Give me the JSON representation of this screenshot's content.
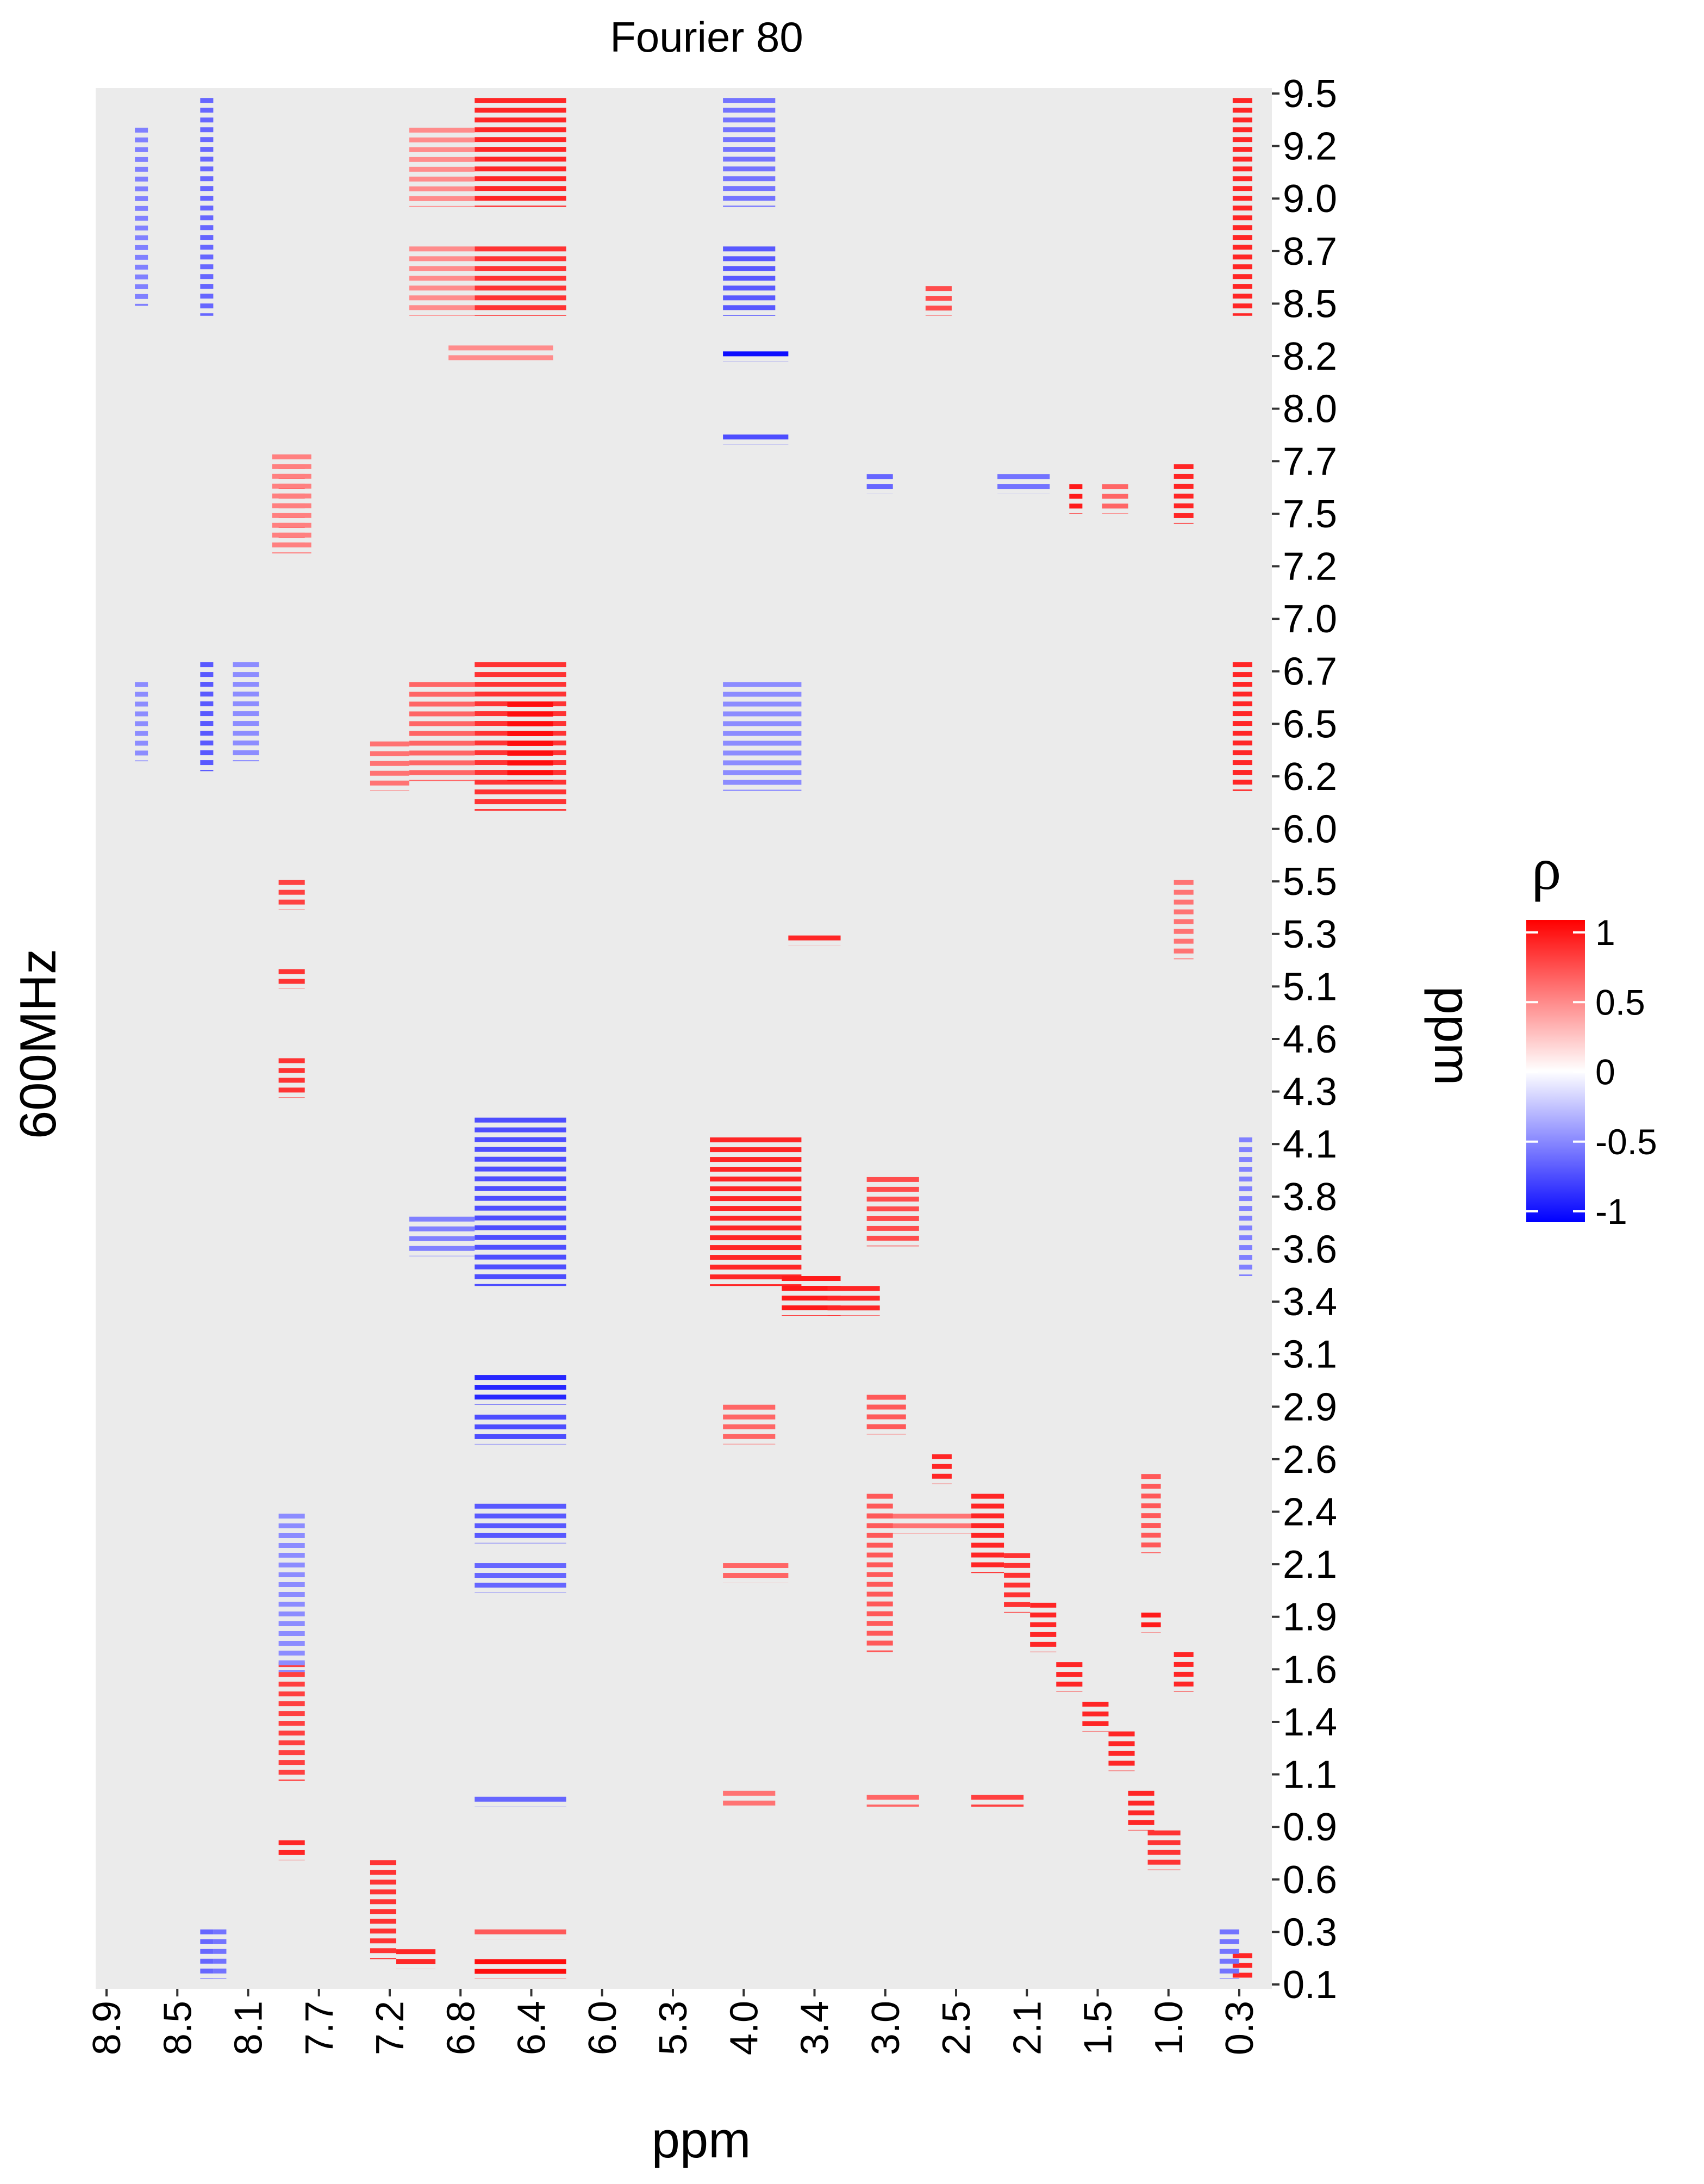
{
  "chart_data": {
    "type": "heatmap",
    "title": "Fourier 80",
    "xlabel": "ppm",
    "ylabel_left": "600MHz",
    "ylabel_right": "ppm",
    "x_ticks": [
      "8.9",
      "8.5",
      "8.1",
      "7.7",
      "7.2",
      "6.8",
      "6.4",
      "6.0",
      "5.3",
      "4.0",
      "3.4",
      "3.0",
      "2.5",
      "2.1",
      "1.5",
      "1.0",
      "0.3"
    ],
    "y_ticks": [
      "9.5",
      "9.2",
      "9.0",
      "8.7",
      "8.5",
      "8.2",
      "8.0",
      "7.7",
      "7.5",
      "7.2",
      "7.0",
      "6.7",
      "6.5",
      "6.2",
      "6.0",
      "5.5",
      "5.3",
      "5.1",
      "4.6",
      "4.3",
      "4.1",
      "3.8",
      "3.6",
      "3.4",
      "3.1",
      "2.9",
      "2.6",
      "2.4",
      "2.1",
      "1.9",
      "1.6",
      "1.4",
      "1.1",
      "0.9",
      "0.6",
      "0.3",
      "0.1"
    ],
    "value_range": [
      -1,
      1
    ],
    "legend": {
      "title": "ρ",
      "position": "right",
      "ticks": [
        "1",
        "0.5",
        "0",
        "-0.5",
        "-1"
      ],
      "tick_values": [
        1,
        0.5,
        0,
        -0.5,
        -1
      ]
    },
    "colors": {
      "positive": "#ff0000",
      "zero": "#ffffff",
      "negative": "#0000ff",
      "background": "#ebebeb"
    },
    "blocks": [
      {
        "x": [
          6.1,
          5.4
        ],
        "y": [
          9.55,
          9.0
        ],
        "value": 0.85
      },
      {
        "x": [
          6.1,
          5.4
        ],
        "y": [
          8.8,
          8.45
        ],
        "value": 0.8
      },
      {
        "x": [
          6.6,
          6.1
        ],
        "y": [
          9.4,
          9.0
        ],
        "value": 0.45
      },
      {
        "x": [
          6.6,
          6.1
        ],
        "y": [
          8.8,
          8.45
        ],
        "value": 0.45
      },
      {
        "x": [
          6.3,
          5.5
        ],
        "y": [
          8.3,
          8.22
        ],
        "value": 0.45
      },
      {
        "x": [
          4.2,
          3.8
        ],
        "y": [
          9.55,
          9.0
        ],
        "value": -0.55
      },
      {
        "x": [
          4.2,
          3.8
        ],
        "y": [
          8.8,
          8.45
        ],
        "value": -0.65
      },
      {
        "x": [
          4.2,
          3.7
        ],
        "y": [
          8.27,
          8.22
        ],
        "value": -0.95
      },
      {
        "x": [
          4.2,
          3.7
        ],
        "y": [
          7.85,
          7.8
        ],
        "value": -0.7
      },
      {
        "x": [
          8.2,
          8.1
        ],
        "y": [
          9.55,
          8.45
        ],
        "value": -0.6
      },
      {
        "x": [
          8.7,
          8.6
        ],
        "y": [
          9.4,
          8.5
        ],
        "value": -0.5
      },
      {
        "x": [
          0.3,
          0.15
        ],
        "y": [
          9.55,
          8.45
        ],
        "value": 0.85
      },
      {
        "x": [
          2.65,
          2.45
        ],
        "y": [
          8.6,
          8.45
        ],
        "value": 0.7
      },
      {
        "x": [
          7.6,
          7.4
        ],
        "y": [
          7.7,
          7.3
        ],
        "value": 0.9
      },
      {
        "x": [
          7.65,
          7.35
        ],
        "y": [
          7.75,
          7.25
        ],
        "value": 0.5
      },
      {
        "x": [
          1.55,
          1.45
        ],
        "y": [
          7.6,
          7.45
        ],
        "value": 0.9
      },
      {
        "x": [
          0.75,
          0.6
        ],
        "y": [
          7.7,
          7.4
        ],
        "value": 0.85
      },
      {
        "x": [
          1.3,
          1.1
        ],
        "y": [
          7.6,
          7.45
        ],
        "value": 0.6
      },
      {
        "x": [
          3.1,
          2.9
        ],
        "y": [
          7.65,
          7.55
        ],
        "value": -0.6
      },
      {
        "x": [
          2.1,
          1.7
        ],
        "y": [
          7.65,
          7.55
        ],
        "value": -0.55
      },
      {
        "x": [
          6.1,
          5.4
        ],
        "y": [
          6.7,
          5.95
        ],
        "value": 0.8
      },
      {
        "x": [
          5.85,
          5.5
        ],
        "y": [
          6.5,
          6.1
        ],
        "value": 0.95
      },
      {
        "x": [
          6.6,
          6.1
        ],
        "y": [
          6.6,
          6.1
        ],
        "value": 0.6
      },
      {
        "x": [
          6.9,
          6.6
        ],
        "y": [
          6.3,
          6.05
        ],
        "value": 0.55
      },
      {
        "x": [
          4.2,
          3.6
        ],
        "y": [
          6.6,
          6.05
        ],
        "value": -0.45
      },
      {
        "x": [
          8.2,
          8.1
        ],
        "y": [
          6.7,
          6.15
        ],
        "value": -0.65
      },
      {
        "x": [
          7.95,
          7.75
        ],
        "y": [
          6.7,
          6.2
        ],
        "value": -0.45
      },
      {
        "x": [
          8.7,
          8.6
        ],
        "y": [
          6.6,
          6.2
        ],
        "value": -0.45
      },
      {
        "x": [
          0.3,
          0.15
        ],
        "y": [
          6.7,
          6.05
        ],
        "value": 0.85
      },
      {
        "x": [
          7.6,
          7.4
        ],
        "y": [
          5.6,
          5.45
        ],
        "value": 0.75
      },
      {
        "x": [
          7.6,
          7.4
        ],
        "y": [
          5.15,
          5.05
        ],
        "value": 0.8
      },
      {
        "x": [
          7.6,
          7.4
        ],
        "y": [
          4.7,
          4.5
        ],
        "value": 0.8
      },
      {
        "x": [
          3.7,
          3.3
        ],
        "y": [
          5.32,
          5.27
        ],
        "value": 0.85
      },
      {
        "x": [
          6.1,
          5.4
        ],
        "y": [
          4.4,
          3.55
        ],
        "value": -0.7
      },
      {
        "x": [
          6.1,
          5.4
        ],
        "y": [
          3.1,
          2.95
        ],
        "value": -0.85
      },
      {
        "x": [
          6.1,
          5.4
        ],
        "y": [
          2.9,
          2.75
        ],
        "value": -0.7
      },
      {
        "x": [
          6.1,
          5.4
        ],
        "y": [
          2.45,
          2.25
        ],
        "value": -0.65
      },
      {
        "x": [
          6.1,
          5.4
        ],
        "y": [
          2.15,
          2.0
        ],
        "value": -0.6
      },
      {
        "x": [
          6.1,
          5.4
        ],
        "y": [
          0.97,
          0.92
        ],
        "value": -0.6
      },
      {
        "x": [
          6.6,
          6.1
        ],
        "y": [
          3.9,
          3.7
        ],
        "value": -0.5
      },
      {
        "x": [
          4.3,
          3.6
        ],
        "y": [
          4.3,
          3.55
        ],
        "value": 0.85
      },
      {
        "x": [
          3.75,
          3.3
        ],
        "y": [
          3.6,
          3.4
        ],
        "value": 0.9
      },
      {
        "x": [
          3.4,
          3.0
        ],
        "y": [
          3.55,
          3.4
        ],
        "value": 0.85
      },
      {
        "x": [
          3.1,
          2.7
        ],
        "y": [
          4.1,
          3.75
        ],
        "value": 0.7
      },
      {
        "x": [
          4.2,
          3.8
        ],
        "y": [
          2.95,
          2.75
        ],
        "value": 0.6
      },
      {
        "x": [
          3.1,
          2.8
        ],
        "y": [
          3.0,
          2.8
        ],
        "value": 0.65
      },
      {
        "x": [
          2.6,
          2.45
        ],
        "y": [
          2.7,
          2.55
        ],
        "value": 0.85
      },
      {
        "x": [
          2.3,
          2.05
        ],
        "y": [
          2.5,
          2.1
        ],
        "value": 0.85
      },
      {
        "x": [
          2.05,
          1.85
        ],
        "y": [
          2.2,
          1.9
        ],
        "value": 0.8
      },
      {
        "x": [
          1.85,
          1.65
        ],
        "y": [
          1.95,
          1.7
        ],
        "value": 0.85
      },
      {
        "x": [
          1.65,
          1.45
        ],
        "y": [
          1.65,
          1.5
        ],
        "value": 0.85
      },
      {
        "x": [
          1.45,
          1.25
        ],
        "y": [
          1.45,
          1.3
        ],
        "value": 0.85
      },
      {
        "x": [
          1.25,
          1.05
        ],
        "y": [
          1.3,
          1.1
        ],
        "value": 0.85
      },
      {
        "x": [
          1.1,
          0.9
        ],
        "y": [
          1.0,
          0.8
        ],
        "value": 0.85
      },
      {
        "x": [
          0.95,
          0.7
        ],
        "y": [
          0.8,
          0.6
        ],
        "value": 0.8
      },
      {
        "x": [
          3.1,
          2.3
        ],
        "y": [
          2.4,
          2.3
        ],
        "value": 0.55
      },
      {
        "x": [
          3.1,
          2.9
        ],
        "y": [
          2.5,
          1.7
        ],
        "value": 0.65
      },
      {
        "x": [
          4.2,
          3.7
        ],
        "y": [
          2.15,
          2.05
        ],
        "value": 0.6
      },
      {
        "x": [
          4.2,
          3.8
        ],
        "y": [
          1.0,
          0.92
        ],
        "value": 0.55
      },
      {
        "x": [
          3.1,
          2.7
        ],
        "y": [
          0.98,
          0.92
        ],
        "value": 0.6
      },
      {
        "x": [
          2.3,
          1.9
        ],
        "y": [
          0.98,
          0.92
        ],
        "value": 0.75
      },
      {
        "x": [
          7.6,
          7.4
        ],
        "y": [
          1.65,
          1.05
        ],
        "value": 0.75
      },
      {
        "x": [
          7.6,
          7.4
        ],
        "y": [
          0.75,
          0.65
        ],
        "value": 0.85
      },
      {
        "x": [
          7.6,
          7.4
        ],
        "y": [
          2.4,
          1.6
        ],
        "value": -0.45
      },
      {
        "x": [
          6.9,
          6.7
        ],
        "y": [
          0.65,
          0.15
        ],
        "value": 0.8
      },
      {
        "x": [
          6.7,
          6.4
        ],
        "y": [
          0.2,
          0.1
        ],
        "value": 0.85
      },
      {
        "x": [
          6.1,
          5.4
        ],
        "y": [
          0.15,
          0.05
        ],
        "value": 0.95
      },
      {
        "x": [
          6.1,
          5.4
        ],
        "y": [
          0.3,
          0.25
        ],
        "value": 0.65
      },
      {
        "x": [
          0.3,
          0.15
        ],
        "y": [
          0.18,
          0.05
        ],
        "value": 0.85
      },
      {
        "x": [
          0.4,
          0.25
        ],
        "y": [
          0.3,
          0.05
        ],
        "value": -0.55
      },
      {
        "x": [
          0.25,
          0.15
        ],
        "y": [
          4.3,
          3.6
        ],
        "value": -0.5
      },
      {
        "x": [
          8.2,
          8.1
        ],
        "y": [
          0.3,
          0.05
        ],
        "value": -0.6
      },
      {
        "x": [
          8.1,
          8.0
        ],
        "y": [
          0.3,
          0.05
        ],
        "value": -0.55
      },
      {
        "x": [
          1.0,
          0.85
        ],
        "y": [
          2.6,
          2.2
        ],
        "value": 0.65
      },
      {
        "x": [
          1.0,
          0.85
        ],
        "y": [
          1.9,
          1.8
        ],
        "value": 0.9
      },
      {
        "x": [
          0.75,
          0.6
        ],
        "y": [
          1.7,
          1.5
        ],
        "value": 0.85
      },
      {
        "x": [
          0.75,
          0.6
        ],
        "y": [
          5.6,
          5.2
        ],
        "value": 0.55
      }
    ]
  }
}
